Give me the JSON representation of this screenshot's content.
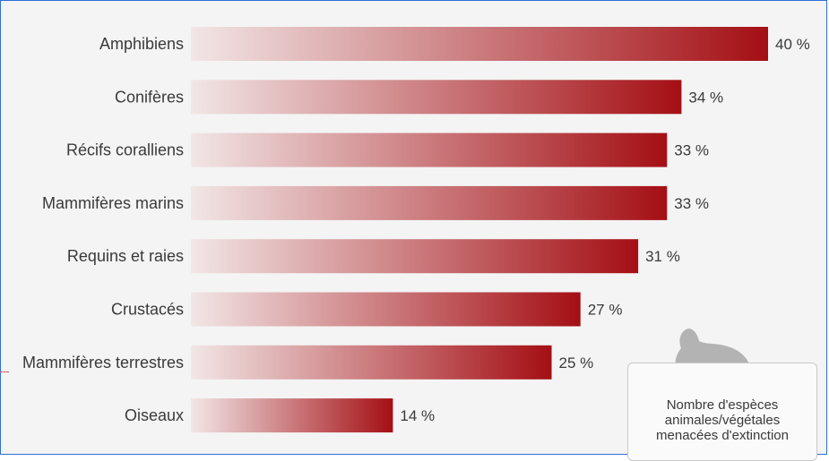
{
  "chart_data": {
    "type": "bar",
    "orientation": "horizontal",
    "title": "",
    "xlabel": "",
    "ylabel": "",
    "categories": [
      "Amphibiens",
      "Conifères",
      "Récifs coralliens",
      "Mammifères marins",
      "Requins et raies",
      "Crustacés",
      "Mammifères terrestres",
      "Oiseaux"
    ],
    "values": [
      40,
      34,
      33,
      33,
      31,
      27,
      25,
      14
    ],
    "value_labels": [
      "40 %",
      "34 %",
      "33 %",
      "33 %",
      "31 %",
      "27 %",
      "25 %",
      "14 %"
    ],
    "xlim": [
      0,
      40
    ],
    "grid": false,
    "bar_gradient": {
      "start": "#f2e6e6",
      "end": "#a40f14"
    },
    "legend": {
      "text_lines": [
        "Nombre d'espèces",
        "animales/végétales",
        "menacées d'extinction"
      ],
      "icon": "frog-icon",
      "placement": "bottom-right"
    }
  },
  "colors": {
    "frame_border": "#2f6fd6",
    "background": "#f4f4f4",
    "text": "#3a3a3a",
    "icon": "#b3b3b3"
  }
}
